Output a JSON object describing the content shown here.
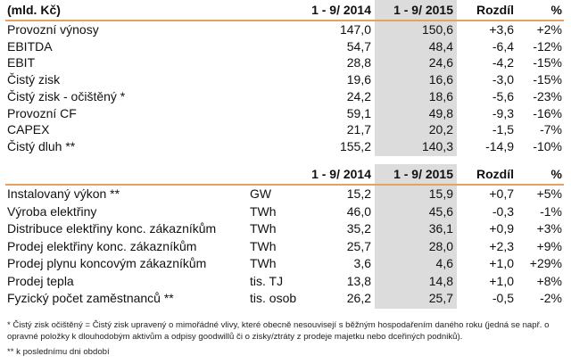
{
  "financial": {
    "headers": [
      "(mld. Kč)",
      "1 - 9/ 2014",
      "1 - 9/ 2015",
      "Rozdíl",
      "%"
    ],
    "rows": [
      [
        "Provozní výnosy",
        "147,0",
        "150,6",
        "+3,6",
        "+2%"
      ],
      [
        "EBITDA",
        "54,7",
        "48,4",
        "-6,4",
        "-12%"
      ],
      [
        "EBIT",
        "28,8",
        "24,6",
        "-4,2",
        "-15%"
      ],
      [
        "Čistý zisk",
        "19,6",
        "16,6",
        "-3,0",
        "-15%"
      ],
      [
        "Čistý zisk - očištěný *",
        "24,2",
        "18,6",
        "-5,6",
        "-23%"
      ],
      [
        "Provozní CF",
        "59,1",
        "49,8",
        "-9,3",
        "-16%"
      ],
      [
        "CAPEX",
        "21,7",
        "20,2",
        "-1,5",
        "-7%"
      ],
      [
        "Čistý dluh **",
        "155,2",
        "140,3",
        "-14,9",
        "-10%"
      ]
    ]
  },
  "operational": {
    "headers": [
      "",
      "",
      "1 - 9/ 2014",
      "1 - 9/ 2015",
      "Rozdíl",
      "%"
    ],
    "rows": [
      [
        "Instalovaný výkon **",
        "GW",
        "15,2",
        "15,9",
        "+0,7",
        "+5%"
      ],
      [
        "Výroba elektřiny",
        "TWh",
        "46,0",
        "45,6",
        "-0,3",
        "-1%"
      ],
      [
        "Distribuce elektřiny konc. zákazníkům",
        "TWh",
        "35,2",
        "36,1",
        "+0,9",
        "+3%"
      ],
      [
        "Prodej elektřiny konc. zákazníkům",
        "TWh",
        "25,7",
        "28,0",
        "+2,3",
        "+9%"
      ],
      [
        "Prodej plynu koncovým zákazníkům",
        "TWh",
        "3,6",
        "4,6",
        "+1,0",
        "+29%"
      ],
      [
        "Prodej tepla",
        "tis. TJ",
        "13,8",
        "14,8",
        "+1,0",
        "+8%"
      ],
      [
        "Fyzický počet zaměstnanců **",
        "tis. osob",
        "26,2",
        "25,7",
        "-0,5",
        "-2%"
      ]
    ]
  },
  "footnotes": [
    "* Čistý zisk očištěný = Čistý zisk upravený o mimořádné vlivy, které obecně nesouvisejí s běžným hospodařením daného roku (jedná se např. o opravné položky k dlouhodobým aktivům a odpisy goodwillů či o zisky/ztráty z prodeje majetku nebo dceřiných podniků).",
    "** k poslednímu dni období"
  ],
  "colors": {
    "accent_line": "#e8a060",
    "highlight_column": "#dcdcdc"
  }
}
